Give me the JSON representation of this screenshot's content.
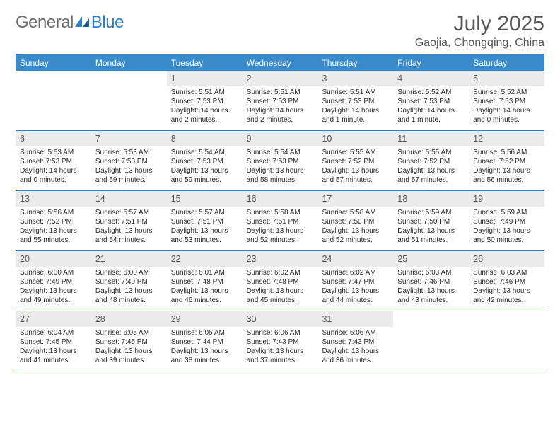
{
  "brand": {
    "part1": "General",
    "part2": "Blue"
  },
  "title": "July 2025",
  "location": "Gaojia, Chongqing, China",
  "colors": {
    "header_bar": "#3b8bca",
    "rule": "#2f7fc2",
    "daynum_bg": "#ebebeb",
    "text": "#2a2a2a",
    "muted": "#555555"
  },
  "days_of_week": [
    "Sunday",
    "Monday",
    "Tuesday",
    "Wednesday",
    "Thursday",
    "Friday",
    "Saturday"
  ],
  "weeks": [
    [
      {
        "n": "",
        "sunrise": "",
        "sunset": "",
        "daylight": ""
      },
      {
        "n": "",
        "sunrise": "",
        "sunset": "",
        "daylight": ""
      },
      {
        "n": "1",
        "sunrise": "Sunrise: 5:51 AM",
        "sunset": "Sunset: 7:53 PM",
        "daylight": "Daylight: 14 hours and 2 minutes."
      },
      {
        "n": "2",
        "sunrise": "Sunrise: 5:51 AM",
        "sunset": "Sunset: 7:53 PM",
        "daylight": "Daylight: 14 hours and 2 minutes."
      },
      {
        "n": "3",
        "sunrise": "Sunrise: 5:51 AM",
        "sunset": "Sunset: 7:53 PM",
        "daylight": "Daylight: 14 hours and 1 minute."
      },
      {
        "n": "4",
        "sunrise": "Sunrise: 5:52 AM",
        "sunset": "Sunset: 7:53 PM",
        "daylight": "Daylight: 14 hours and 1 minute."
      },
      {
        "n": "5",
        "sunrise": "Sunrise: 5:52 AM",
        "sunset": "Sunset: 7:53 PM",
        "daylight": "Daylight: 14 hours and 0 minutes."
      }
    ],
    [
      {
        "n": "6",
        "sunrise": "Sunrise: 5:53 AM",
        "sunset": "Sunset: 7:53 PM",
        "daylight": "Daylight: 14 hours and 0 minutes."
      },
      {
        "n": "7",
        "sunrise": "Sunrise: 5:53 AM",
        "sunset": "Sunset: 7:53 PM",
        "daylight": "Daylight: 13 hours and 59 minutes."
      },
      {
        "n": "8",
        "sunrise": "Sunrise: 5:54 AM",
        "sunset": "Sunset: 7:53 PM",
        "daylight": "Daylight: 13 hours and 59 minutes."
      },
      {
        "n": "9",
        "sunrise": "Sunrise: 5:54 AM",
        "sunset": "Sunset: 7:53 PM",
        "daylight": "Daylight: 13 hours and 58 minutes."
      },
      {
        "n": "10",
        "sunrise": "Sunrise: 5:55 AM",
        "sunset": "Sunset: 7:52 PM",
        "daylight": "Daylight: 13 hours and 57 minutes."
      },
      {
        "n": "11",
        "sunrise": "Sunrise: 5:55 AM",
        "sunset": "Sunset: 7:52 PM",
        "daylight": "Daylight: 13 hours and 57 minutes."
      },
      {
        "n": "12",
        "sunrise": "Sunrise: 5:56 AM",
        "sunset": "Sunset: 7:52 PM",
        "daylight": "Daylight: 13 hours and 56 minutes."
      }
    ],
    [
      {
        "n": "13",
        "sunrise": "Sunrise: 5:56 AM",
        "sunset": "Sunset: 7:52 PM",
        "daylight": "Daylight: 13 hours and 55 minutes."
      },
      {
        "n": "14",
        "sunrise": "Sunrise: 5:57 AM",
        "sunset": "Sunset: 7:51 PM",
        "daylight": "Daylight: 13 hours and 54 minutes."
      },
      {
        "n": "15",
        "sunrise": "Sunrise: 5:57 AM",
        "sunset": "Sunset: 7:51 PM",
        "daylight": "Daylight: 13 hours and 53 minutes."
      },
      {
        "n": "16",
        "sunrise": "Sunrise: 5:58 AM",
        "sunset": "Sunset: 7:51 PM",
        "daylight": "Daylight: 13 hours and 52 minutes."
      },
      {
        "n": "17",
        "sunrise": "Sunrise: 5:58 AM",
        "sunset": "Sunset: 7:50 PM",
        "daylight": "Daylight: 13 hours and 52 minutes."
      },
      {
        "n": "18",
        "sunrise": "Sunrise: 5:59 AM",
        "sunset": "Sunset: 7:50 PM",
        "daylight": "Daylight: 13 hours and 51 minutes."
      },
      {
        "n": "19",
        "sunrise": "Sunrise: 5:59 AM",
        "sunset": "Sunset: 7:49 PM",
        "daylight": "Daylight: 13 hours and 50 minutes."
      }
    ],
    [
      {
        "n": "20",
        "sunrise": "Sunrise: 6:00 AM",
        "sunset": "Sunset: 7:49 PM",
        "daylight": "Daylight: 13 hours and 49 minutes."
      },
      {
        "n": "21",
        "sunrise": "Sunrise: 6:00 AM",
        "sunset": "Sunset: 7:49 PM",
        "daylight": "Daylight: 13 hours and 48 minutes."
      },
      {
        "n": "22",
        "sunrise": "Sunrise: 6:01 AM",
        "sunset": "Sunset: 7:48 PM",
        "daylight": "Daylight: 13 hours and 46 minutes."
      },
      {
        "n": "23",
        "sunrise": "Sunrise: 6:02 AM",
        "sunset": "Sunset: 7:48 PM",
        "daylight": "Daylight: 13 hours and 45 minutes."
      },
      {
        "n": "24",
        "sunrise": "Sunrise: 6:02 AM",
        "sunset": "Sunset: 7:47 PM",
        "daylight": "Daylight: 13 hours and 44 minutes."
      },
      {
        "n": "25",
        "sunrise": "Sunrise: 6:03 AM",
        "sunset": "Sunset: 7:46 PM",
        "daylight": "Daylight: 13 hours and 43 minutes."
      },
      {
        "n": "26",
        "sunrise": "Sunrise: 6:03 AM",
        "sunset": "Sunset: 7:46 PM",
        "daylight": "Daylight: 13 hours and 42 minutes."
      }
    ],
    [
      {
        "n": "27",
        "sunrise": "Sunrise: 6:04 AM",
        "sunset": "Sunset: 7:45 PM",
        "daylight": "Daylight: 13 hours and 41 minutes."
      },
      {
        "n": "28",
        "sunrise": "Sunrise: 6:05 AM",
        "sunset": "Sunset: 7:45 PM",
        "daylight": "Daylight: 13 hours and 39 minutes."
      },
      {
        "n": "29",
        "sunrise": "Sunrise: 6:05 AM",
        "sunset": "Sunset: 7:44 PM",
        "daylight": "Daylight: 13 hours and 38 minutes."
      },
      {
        "n": "30",
        "sunrise": "Sunrise: 6:06 AM",
        "sunset": "Sunset: 7:43 PM",
        "daylight": "Daylight: 13 hours and 37 minutes."
      },
      {
        "n": "31",
        "sunrise": "Sunrise: 6:06 AM",
        "sunset": "Sunset: 7:43 PM",
        "daylight": "Daylight: 13 hours and 36 minutes."
      },
      {
        "n": "",
        "sunrise": "",
        "sunset": "",
        "daylight": ""
      },
      {
        "n": "",
        "sunrise": "",
        "sunset": "",
        "daylight": ""
      }
    ]
  ]
}
